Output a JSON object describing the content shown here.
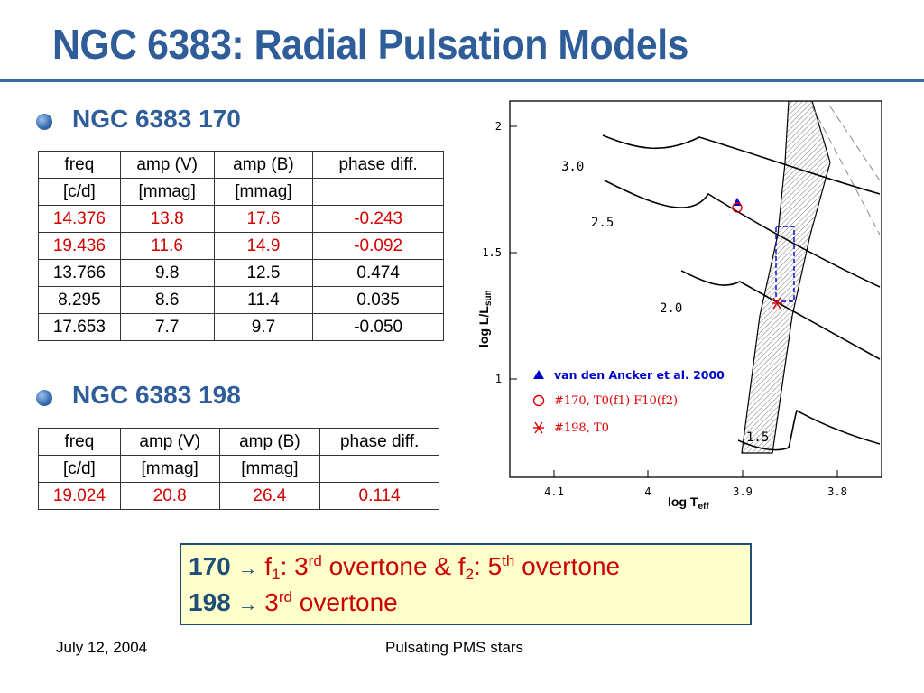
{
  "slide": {
    "title": "NGC 6383: Radial Pulsation Models",
    "colors": {
      "title": "#2e5d99",
      "highlight_text": "#cc0000",
      "callout_bg": "#ffffcc"
    }
  },
  "star170": {
    "heading": "NGC 6383 170",
    "header_row1": [
      "freq",
      "amp (V)",
      "amp (B)",
      "phase diff."
    ],
    "header_row2": [
      "[c/d]",
      "[mmag]",
      "[mmag]",
      ""
    ],
    "rows": [
      {
        "cells": [
          "14.376",
          "13.8",
          "17.6",
          "-0.243"
        ],
        "highlight": true
      },
      {
        "cells": [
          "19.436",
          "11.6",
          "14.9",
          "-0.092"
        ],
        "highlight": true
      },
      {
        "cells": [
          "13.766",
          "9.8",
          "12.5",
          "0.474"
        ],
        "highlight": false
      },
      {
        "cells": [
          "8.295",
          "8.6",
          "11.4",
          "0.035"
        ],
        "highlight": false
      },
      {
        "cells": [
          "17.653",
          "7.7",
          "9.7",
          "-0.050"
        ],
        "highlight": false
      }
    ]
  },
  "star198": {
    "heading": "NGC 6383 198",
    "header_row1": [
      "freq",
      "amp (V)",
      "amp (B)",
      "phase diff."
    ],
    "header_row2": [
      "[c/d]",
      "[mmag]",
      "[mmag]",
      ""
    ],
    "rows": [
      {
        "cells": [
          "19.024",
          "20.8",
          "26.4",
          "0.114"
        ],
        "highlight": true
      }
    ]
  },
  "chart_data": {
    "type": "scatter",
    "xlabel": "log T",
    "xlabel_sub": "eff",
    "ylabel": "log L/L",
    "ylabel_sub": "sun",
    "x_reversed": true,
    "xlim": [
      4.2,
      3.76
    ],
    "ylim": [
      0.85,
      2.1
    ],
    "x_ticks": [
      "4.1",
      "4",
      "3.9",
      "3.8"
    ],
    "y_ticks": [
      "2",
      "1.5",
      "1"
    ],
    "track_labels": [
      "3.0",
      "2.5",
      "2.0",
      "1.5"
    ],
    "legend": [
      {
        "label": "van den Ancker et al. 2000",
        "marker": "filled-triangle",
        "color": "#0000cc"
      },
      {
        "label": "#170,  T0(f1)  F10(f2)",
        "marker": "open-circle",
        "color": "#dd0000"
      },
      {
        "label": "#198,  T0",
        "marker": "asterisk",
        "color": "#dd0000"
      }
    ],
    "points": [
      {
        "series": "van den Ancker et al. 2000",
        "x": 3.895,
        "y": 1.69
      },
      {
        "series": "#170,  T0(f1)  F10(f2)",
        "x": 3.895,
        "y": 1.67
      },
      {
        "series": "#198,  T0",
        "x": 3.865,
        "y": 1.3
      }
    ],
    "error_box": {
      "x": [
        3.851,
        3.869
      ],
      "y": [
        1.3,
        1.6
      ]
    },
    "instability_strip": "hatched band"
  },
  "callout": {
    "line1": {
      "num": "170",
      "arrow": "→",
      "f": "f",
      "sub1": "1",
      "mid": ": 3",
      "sup1": "rd",
      "t1": " overtone & f",
      "sub2": "2",
      "mid2": ": 5",
      "sup2": "th",
      "t2": " overtone"
    },
    "line2": {
      "num": "198",
      "arrow": "→",
      "mid": "3",
      "sup": "rd",
      "t": " overtone"
    }
  },
  "footer": {
    "date": "July 12, 2004",
    "center": "Pulsating PMS stars"
  }
}
